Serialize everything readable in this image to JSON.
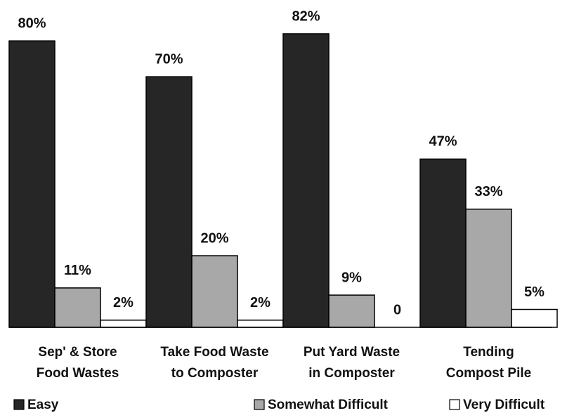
{
  "chart_data": {
    "type": "bar",
    "categories": [
      [
        "Sep' & Store",
        "Food Wastes"
      ],
      [
        "Take Food Waste",
        "to Composter"
      ],
      [
        "Put Yard Waste",
        "in Composter"
      ],
      [
        "Tending",
        "Compost Pile"
      ]
    ],
    "series": [
      {
        "name": "Easy",
        "color": "#262626",
        "values": [
          80,
          70,
          82,
          47
        ],
        "value_labels": [
          "80%",
          "70%",
          "82%",
          "47%"
        ]
      },
      {
        "name": "Somewhat Difficult",
        "color": "#a8a8a8",
        "values": [
          11,
          20,
          9,
          33
        ],
        "value_labels": [
          "11%",
          "20%",
          "9%",
          "33%"
        ]
      },
      {
        "name": "Very Difficult",
        "color": "#ffffff",
        "values": [
          2,
          2,
          0,
          5
        ],
        "value_labels": [
          "2%",
          "2%",
          "0",
          "5%"
        ]
      }
    ],
    "legend": "bottom"
  }
}
